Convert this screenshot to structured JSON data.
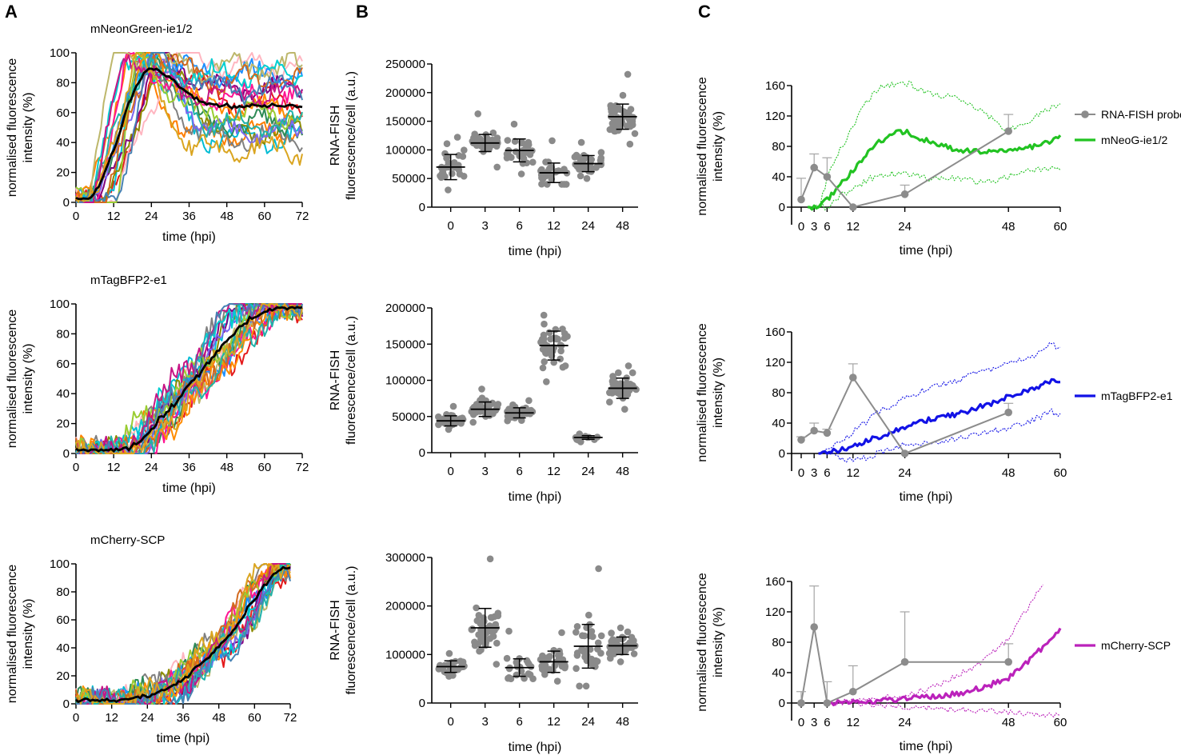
{
  "panel_labels": [
    "A",
    "B",
    "C"
  ],
  "colors": {
    "mNeonGreen": "#22c322",
    "mTagBFP2": "#1212e6",
    "mCherry": "#bb22bb",
    "fish": "#8c8c8c",
    "dots": "#8a8a8a"
  },
  "chart_data": [
    {
      "id": "A1",
      "type": "line",
      "title": "mNeonGreen-ie1/2",
      "xlabel": "time (hpi)",
      "ylabel_lines": [
        "normalised fluorescence",
        "intensity (%)"
      ],
      "xlim": [
        0,
        72
      ],
      "ylim": [
        0,
        100
      ],
      "xticks": [
        "0",
        "12",
        "24",
        "36",
        "48",
        "60",
        "72"
      ],
      "yticks": [
        "0",
        "20",
        "40",
        "60",
        "80",
        "100"
      ],
      "n_traces": 20,
      "mean_trace": "black",
      "trace_colors": [
        "#e41a1c",
        "#ff7f00",
        "#ffb6c1",
        "#00bcd4",
        "#8b8b00",
        "#800080",
        "#808080",
        "#2e8b57",
        "#1e90ff",
        "#ff1493",
        "#bdb76b",
        "#7b68ee",
        "#00ced1",
        "#ff8c00",
        "#9acd32",
        "#d2691e",
        "#20b2aa",
        "#c71585",
        "#4682b4",
        "#daa520"
      ]
    },
    {
      "id": "A2",
      "type": "line",
      "title": "mTagBFP2-e1",
      "xlabel": "time (hpi)",
      "ylabel_lines": [
        "normalised fluorescence",
        "intensity (%)"
      ],
      "xlim": [
        0,
        72
      ],
      "ylim": [
        0,
        100
      ],
      "xticks": [
        "0",
        "12",
        "24",
        "36",
        "48",
        "60",
        "72"
      ],
      "yticks": [
        "0",
        "20",
        "40",
        "60",
        "80",
        "100"
      ],
      "n_traces": 20,
      "mean_trace": "black"
    },
    {
      "id": "A3",
      "type": "line",
      "title": "mCherry-SCP",
      "xlabel": "time (hpi)",
      "ylabel_lines": [
        "normalised fluorescence",
        "intensity (%)"
      ],
      "xlim": [
        0,
        72
      ],
      "ylim": [
        0,
        100
      ],
      "xticks": [
        "0",
        "12",
        "24",
        "36",
        "48",
        "60",
        "72"
      ],
      "yticks": [
        "0",
        "20",
        "40",
        "60",
        "80",
        "100"
      ],
      "n_traces": 20,
      "mean_trace": "black"
    },
    {
      "id": "B1",
      "type": "scatter",
      "xlabel": "time (hpi)",
      "ylabel_lines": [
        "RNA-FISH",
        "fluorescence/cell (a.u.)"
      ],
      "categories": [
        "0",
        "3",
        "6",
        "12",
        "24",
        "48"
      ],
      "ylim": [
        0,
        250000
      ],
      "yticks": [
        "0",
        "50000",
        "100000",
        "150000",
        "200000",
        "250000"
      ],
      "mean": [
        70000,
        112000,
        99000,
        60000,
        76000,
        158000
      ],
      "sd": [
        22000,
        15000,
        20000,
        17000,
        14000,
        22000
      ],
      "min": [
        30000,
        70000,
        58000,
        40000,
        50000,
        110000
      ],
      "max": [
        122000,
        163000,
        145000,
        116000,
        113000,
        232000
      ],
      "n": [
        28,
        40,
        30,
        26,
        32,
        50
      ]
    },
    {
      "id": "B2",
      "type": "scatter",
      "xlabel": "time (hpi)",
      "ylabel_lines": [
        "RNA-FISH",
        "fluorescence/cell (a.u.)"
      ],
      "categories": [
        "0",
        "3",
        "6",
        "12",
        "24",
        "48"
      ],
      "ylim": [
        0,
        200000
      ],
      "yticks": [
        "0",
        "50000",
        "100000",
        "150000",
        "200000"
      ],
      "mean": [
        44000,
        60000,
        55000,
        148000,
        21000,
        89000
      ],
      "sd": [
        7000,
        10000,
        7000,
        20000,
        2500,
        14000
      ],
      "min": [
        32000,
        42000,
        44000,
        98000,
        15000,
        60000
      ],
      "max": [
        64000,
        88000,
        72000,
        190000,
        26000,
        120000
      ],
      "n": [
        28,
        40,
        30,
        44,
        12,
        48
      ]
    },
    {
      "id": "B3",
      "type": "scatter",
      "xlabel": "time (hpi)",
      "ylabel_lines": [
        "RNA-FISH",
        "fluorescence/cell (a.u.)"
      ],
      "categories": [
        "0",
        "3",
        "6",
        "12",
        "24",
        "48"
      ],
      "ylim": [
        0,
        300000
      ],
      "yticks": [
        "0",
        "100000",
        "200000",
        "300000"
      ],
      "mean": [
        75000,
        155000,
        73000,
        85000,
        117000,
        118000
      ],
      "sd": [
        12000,
        40000,
        18000,
        22000,
        45000,
        18000
      ],
      "min": [
        55000,
        80000,
        50000,
        45000,
        35000,
        85000
      ],
      "max": [
        102000,
        297000,
        148000,
        145000,
        277000,
        155000
      ],
      "n": [
        26,
        48,
        22,
        36,
        34,
        48
      ]
    },
    {
      "id": "C1",
      "type": "line",
      "xlabel": "time (hpi)",
      "ylabel_lines": [
        "normalised fluorescence",
        "intensity (%)"
      ],
      "xlim": [
        0,
        60
      ],
      "ylim": [
        0,
        160
      ],
      "xticks": [
        "0",
        "3",
        "6",
        "12",
        "24",
        "48",
        "60"
      ],
      "yticks": [
        "0",
        "40",
        "80",
        "120",
        "160"
      ],
      "fish": {
        "x": [
          0,
          3,
          6,
          12,
          24,
          48
        ],
        "y": [
          10,
          52,
          40,
          0,
          17,
          100
        ],
        "err": [
          28,
          18,
          25,
          0,
          12,
          22
        ]
      },
      "reporter_mean_pts": [
        [
          1.5,
          0
        ],
        [
          3,
          0
        ],
        [
          6,
          10
        ],
        [
          10,
          35
        ],
        [
          14,
          62
        ],
        [
          18,
          85
        ],
        [
          22,
          98
        ],
        [
          24,
          100
        ],
        [
          26,
          92
        ],
        [
          30,
          86
        ],
        [
          36,
          76
        ],
        [
          42,
          73
        ],
        [
          48,
          75
        ],
        [
          54,
          80
        ],
        [
          60,
          92
        ]
      ],
      "reporter_upper_pts": [
        [
          2,
          0
        ],
        [
          4,
          0
        ],
        [
          7,
          55
        ],
        [
          10,
          85
        ],
        [
          14,
          130
        ],
        [
          18,
          157
        ],
        [
          20,
          160
        ],
        [
          25,
          162
        ],
        [
          30,
          148
        ],
        [
          36,
          145
        ],
        [
          42,
          126
        ],
        [
          48,
          100
        ],
        [
          54,
          118
        ],
        [
          60,
          137
        ]
      ],
      "reporter_lower_pts": [
        [
          3,
          0
        ],
        [
          6,
          0
        ],
        [
          9,
          15
        ],
        [
          12,
          23
        ],
        [
          16,
          38
        ],
        [
          20,
          43
        ],
        [
          24,
          44
        ],
        [
          30,
          38
        ],
        [
          36,
          38
        ],
        [
          42,
          32
        ],
        [
          48,
          40
        ],
        [
          54,
          50
        ],
        [
          60,
          52
        ]
      ],
      "legend": [
        "RNA-FISH probe",
        "mNeoG-ie1/2"
      ]
    },
    {
      "id": "C2",
      "type": "line",
      "xlabel": "time (hpi)",
      "ylabel_lines": [
        "normalised fluorescence",
        "intensity (%)"
      ],
      "xlim": [
        0,
        60
      ],
      "ylim": [
        0,
        160
      ],
      "xticks": [
        "0",
        "3",
        "6",
        "12",
        "24",
        "48",
        "60"
      ],
      "yticks": [
        "0",
        "40",
        "80",
        "120",
        "160"
      ],
      "fish": {
        "x": [
          0,
          3,
          6,
          12,
          24,
          48
        ],
        "y": [
          18,
          30,
          27,
          100,
          0,
          54
        ],
        "err": [
          4,
          10,
          5,
          18,
          0,
          12
        ]
      },
      "reporter_mean_pts": [
        [
          4,
          0
        ],
        [
          6,
          1
        ],
        [
          10,
          6
        ],
        [
          14,
          14
        ],
        [
          18,
          22
        ],
        [
          24,
          35
        ],
        [
          30,
          45
        ],
        [
          36,
          52
        ],
        [
          42,
          62
        ],
        [
          48,
          75
        ],
        [
          54,
          86
        ],
        [
          58,
          96
        ],
        [
          60,
          95
        ]
      ],
      "reporter_upper_pts": [
        [
          4,
          0
        ],
        [
          6,
          3
        ],
        [
          10,
          20
        ],
        [
          14,
          37
        ],
        [
          18,
          55
        ],
        [
          24,
          72
        ],
        [
          30,
          88
        ],
        [
          36,
          96
        ],
        [
          42,
          108
        ],
        [
          48,
          118
        ],
        [
          54,
          128
        ],
        [
          58,
          145
        ],
        [
          60,
          138
        ]
      ],
      "reporter_lower_pts": [
        [
          6,
          0
        ],
        [
          9,
          -6
        ],
        [
          12,
          -10
        ],
        [
          16,
          -4
        ],
        [
          20,
          5
        ],
        [
          24,
          12
        ],
        [
          30,
          14
        ],
        [
          36,
          20
        ],
        [
          42,
          27
        ],
        [
          48,
          34
        ],
        [
          54,
          45
        ],
        [
          58,
          55
        ],
        [
          60,
          52
        ]
      ],
      "legend": [
        "mTagBFP2-e1"
      ]
    },
    {
      "id": "C3",
      "type": "line",
      "xlabel": "time (hpi)",
      "ylabel_lines": [
        "normalised fluorescence",
        "intensity (%)"
      ],
      "xlim": [
        0,
        60
      ],
      "ylim": [
        0,
        160
      ],
      "xticks": [
        "0",
        "3",
        "6",
        "12",
        "24",
        "48",
        "60"
      ],
      "yticks": [
        "0",
        "40",
        "80",
        "120",
        "160"
      ],
      "fish": {
        "x": [
          0,
          3,
          6,
          12,
          24,
          48
        ],
        "y": [
          0,
          100,
          0,
          15,
          54,
          54
        ],
        "err": [
          15,
          54,
          28,
          34,
          66,
          24
        ]
      },
      "reporter_mean_pts": [
        [
          6,
          0
        ],
        [
          12,
          1
        ],
        [
          18,
          3
        ],
        [
          24,
          5
        ],
        [
          30,
          8
        ],
        [
          36,
          12
        ],
        [
          42,
          20
        ],
        [
          48,
          33
        ],
        [
          54,
          62
        ],
        [
          60,
          98
        ]
      ],
      "reporter_upper_pts": [
        [
          6,
          0
        ],
        [
          12,
          3
        ],
        [
          18,
          6
        ],
        [
          24,
          10
        ],
        [
          30,
          20
        ],
        [
          36,
          35
        ],
        [
          42,
          55
        ],
        [
          48,
          85
        ],
        [
          53,
          130
        ],
        [
          56,
          158
        ]
      ],
      "reporter_lower_pts": [
        [
          6,
          0
        ],
        [
          12,
          -1
        ],
        [
          18,
          -3
        ],
        [
          24,
          -5
        ],
        [
          30,
          -7
        ],
        [
          36,
          -9
        ],
        [
          42,
          -10
        ],
        [
          48,
          -12
        ],
        [
          54,
          -14
        ],
        [
          60,
          -17
        ]
      ],
      "legend": [
        "mCherry-SCP"
      ]
    }
  ]
}
